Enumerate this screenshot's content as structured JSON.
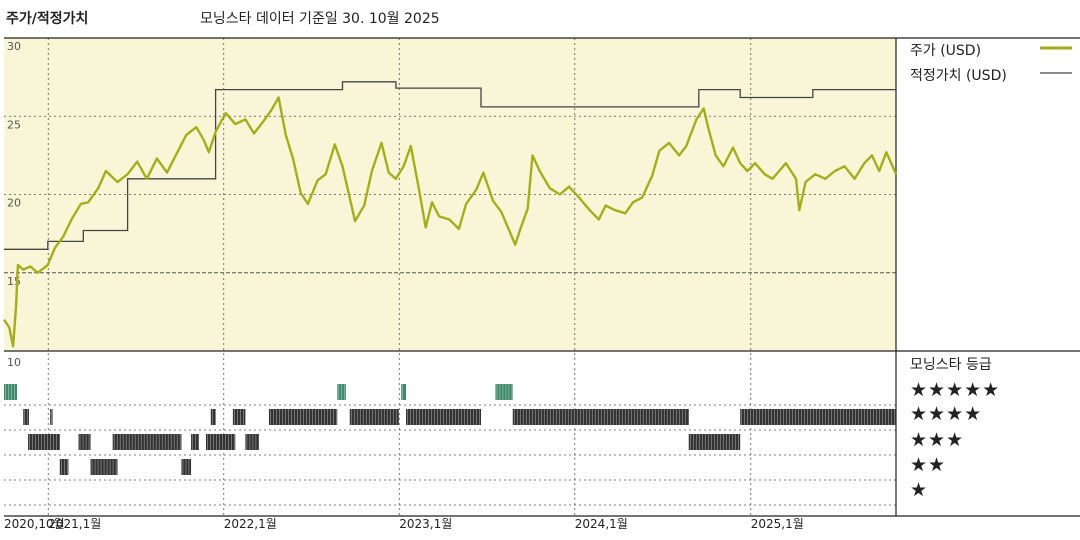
{
  "header": {
    "left_title": "주가/적정가치",
    "caption": "모닝스타 데이터 기준일 30. 10월 2025"
  },
  "legend": {
    "price_label": "주가 (USD)",
    "fair_label": "적정가치 (USD)",
    "rating_title": "모닝스타 등급",
    "stars": [
      "★★★★★",
      "★★★★",
      "★★★",
      "★★",
      "★"
    ]
  },
  "colors": {
    "price_line": "#a6ad1c",
    "fair_line": "#444444",
    "plot_bg": "#f8f6d6",
    "five_star": "#3f8a6a",
    "rating_bar": "#333333"
  },
  "chart_data": {
    "type": "line",
    "title": "주가/적정가치",
    "xlabel": "",
    "ylabel": "",
    "ylim": [
      10,
      30
    ],
    "yticks": [
      10,
      15,
      20,
      25,
      30
    ],
    "xlim": [
      "2020-10-01",
      "2025-10-30"
    ],
    "xticks": [
      {
        "date": "2020-10-01",
        "label": "2020,10월"
      },
      {
        "date": "2021-01-01",
        "label": "2021,1월"
      },
      {
        "date": "2022-01-01",
        "label": "2022,1월"
      },
      {
        "date": "2023-01-01",
        "label": "2023,1월"
      },
      {
        "date": "2024-01-01",
        "label": "2024,1월"
      },
      {
        "date": "2025-01-01",
        "label": "2025,1월"
      }
    ],
    "grid": true,
    "legend_position": "right",
    "series": [
      {
        "name": "주가 (USD)",
        "points": [
          [
            "2020-10-01",
            12.0
          ],
          [
            "2020-10-12",
            11.5
          ],
          [
            "2020-10-20",
            10.3
          ],
          [
            "2020-10-26",
            12.8
          ],
          [
            "2020-10-30",
            15.5
          ],
          [
            "2020-11-10",
            15.2
          ],
          [
            "2020-11-25",
            15.4
          ],
          [
            "2020-12-10",
            15.0
          ],
          [
            "2020-12-31",
            15.5
          ],
          [
            "2021-01-15",
            16.6
          ],
          [
            "2021-02-01",
            17.3
          ],
          [
            "2021-02-20",
            18.5
          ],
          [
            "2021-03-10",
            19.4
          ],
          [
            "2021-03-25",
            19.5
          ],
          [
            "2021-04-15",
            20.4
          ],
          [
            "2021-05-01",
            21.5
          ],
          [
            "2021-05-25",
            20.8
          ],
          [
            "2021-06-15",
            21.3
          ],
          [
            "2021-07-05",
            22.1
          ],
          [
            "2021-07-25",
            21.0
          ],
          [
            "2021-08-15",
            22.3
          ],
          [
            "2021-09-05",
            21.4
          ],
          [
            "2021-09-25",
            22.6
          ],
          [
            "2021-10-15",
            23.8
          ],
          [
            "2021-11-05",
            24.3
          ],
          [
            "2021-11-20",
            23.5
          ],
          [
            "2021-12-01",
            22.7
          ],
          [
            "2021-12-15",
            24.0
          ],
          [
            "2022-01-05",
            25.2
          ],
          [
            "2022-01-25",
            24.5
          ],
          [
            "2022-02-15",
            24.8
          ],
          [
            "2022-03-05",
            23.9
          ],
          [
            "2022-03-25",
            24.7
          ],
          [
            "2022-04-10",
            25.4
          ],
          [
            "2022-04-25",
            26.2
          ],
          [
            "2022-05-10",
            23.8
          ],
          [
            "2022-05-25",
            22.3
          ],
          [
            "2022-06-10",
            20.1
          ],
          [
            "2022-06-25",
            19.4
          ],
          [
            "2022-07-15",
            20.9
          ],
          [
            "2022-08-01",
            21.3
          ],
          [
            "2022-08-20",
            23.2
          ],
          [
            "2022-09-05",
            21.8
          ],
          [
            "2022-09-20",
            19.8
          ],
          [
            "2022-10-01",
            18.3
          ],
          [
            "2022-10-20",
            19.3
          ],
          [
            "2022-11-05",
            21.5
          ],
          [
            "2022-11-25",
            23.3
          ],
          [
            "2022-12-10",
            21.4
          ],
          [
            "2022-12-25",
            21.0
          ],
          [
            "2023-01-10",
            21.8
          ],
          [
            "2023-01-25",
            23.1
          ],
          [
            "2023-02-10",
            20.5
          ],
          [
            "2023-02-25",
            17.9
          ],
          [
            "2023-03-10",
            19.5
          ],
          [
            "2023-03-25",
            18.6
          ],
          [
            "2023-04-15",
            18.4
          ],
          [
            "2023-05-05",
            17.8
          ],
          [
            "2023-05-20",
            19.4
          ],
          [
            "2023-06-10",
            20.3
          ],
          [
            "2023-06-25",
            21.4
          ],
          [
            "2023-07-15",
            19.6
          ],
          [
            "2023-08-01",
            18.9
          ],
          [
            "2023-08-15",
            17.9
          ],
          [
            "2023-08-30",
            16.8
          ],
          [
            "2023-09-10",
            17.8
          ],
          [
            "2023-09-25",
            19.1
          ],
          [
            "2023-10-05",
            22.5
          ],
          [
            "2023-10-20",
            21.5
          ],
          [
            "2023-11-10",
            20.4
          ],
          [
            "2023-12-01",
            20.0
          ],
          [
            "2023-12-20",
            20.5
          ],
          [
            "2024-01-10",
            19.8
          ],
          [
            "2024-02-01",
            19.0
          ],
          [
            "2024-02-20",
            18.4
          ],
          [
            "2024-03-05",
            19.3
          ],
          [
            "2024-03-25",
            19.0
          ],
          [
            "2024-04-15",
            18.8
          ],
          [
            "2024-05-01",
            19.5
          ],
          [
            "2024-05-20",
            19.8
          ],
          [
            "2024-06-10",
            21.2
          ],
          [
            "2024-06-25",
            22.8
          ],
          [
            "2024-07-15",
            23.3
          ],
          [
            "2024-08-05",
            22.5
          ],
          [
            "2024-08-20",
            23.1
          ],
          [
            "2024-09-10",
            24.8
          ],
          [
            "2024-09-25",
            25.5
          ],
          [
            "2024-10-05",
            24.2
          ],
          [
            "2024-10-20",
            22.5
          ],
          [
            "2024-11-05",
            21.8
          ],
          [
            "2024-11-25",
            23.0
          ],
          [
            "2024-12-10",
            22.0
          ],
          [
            "2024-12-25",
            21.5
          ],
          [
            "2025-01-10",
            22.0
          ],
          [
            "2025-01-30",
            21.3
          ],
          [
            "2025-02-15",
            21.0
          ],
          [
            "2025-03-01",
            21.5
          ],
          [
            "2025-03-15",
            22.0
          ],
          [
            "2025-04-05",
            21.0
          ],
          [
            "2025-04-12",
            19.0
          ],
          [
            "2025-04-25",
            20.8
          ],
          [
            "2025-05-15",
            21.3
          ],
          [
            "2025-06-05",
            21.0
          ],
          [
            "2025-06-25",
            21.5
          ],
          [
            "2025-07-15",
            21.8
          ],
          [
            "2025-08-05",
            21.0
          ],
          [
            "2025-08-25",
            22.0
          ],
          [
            "2025-09-10",
            22.5
          ],
          [
            "2025-09-25",
            21.5
          ],
          [
            "2025-10-10",
            22.7
          ],
          [
            "2025-10-30",
            21.3
          ]
        ]
      },
      {
        "name": "적정가치 (USD)",
        "points": [
          [
            "2020-10-01",
            16.5
          ],
          [
            "2020-12-31",
            16.5
          ],
          [
            "2020-12-31",
            17.0
          ],
          [
            "2021-03-15",
            17.0
          ],
          [
            "2021-03-15",
            17.7
          ],
          [
            "2021-06-15",
            17.7
          ],
          [
            "2021-06-15",
            21.0
          ],
          [
            "2021-12-15",
            21.0
          ],
          [
            "2021-12-15",
            26.7
          ],
          [
            "2022-09-05",
            26.7
          ],
          [
            "2022-09-05",
            27.2
          ],
          [
            "2022-12-25",
            27.2
          ],
          [
            "2022-12-25",
            26.8
          ],
          [
            "2023-06-20",
            26.8
          ],
          [
            "2023-06-20",
            25.6
          ],
          [
            "2024-09-15",
            25.6
          ],
          [
            "2024-09-15",
            26.7
          ],
          [
            "2024-12-10",
            26.7
          ],
          [
            "2024-12-10",
            26.2
          ],
          [
            "2025-05-10",
            26.2
          ],
          [
            "2025-05-10",
            26.7
          ],
          [
            "2025-10-30",
            26.7
          ]
        ]
      }
    ],
    "rating_rows": [
      {
        "stars": 5,
        "segments": [
          [
            "2020-10-01",
            "2020-10-28"
          ],
          [
            "2022-08-25",
            "2022-09-12"
          ],
          [
            "2023-01-05",
            "2023-01-15"
          ],
          [
            "2023-07-20",
            "2023-08-25"
          ]
        ]
      },
      {
        "stars": 4,
        "segments": [
          [
            "2020-11-10",
            "2020-11-22"
          ],
          [
            "2021-01-05",
            "2021-01-10"
          ],
          [
            "2021-12-05",
            "2021-12-15"
          ],
          [
            "2022-01-20",
            "2022-02-15"
          ],
          [
            "2022-04-05",
            "2022-08-25"
          ],
          [
            "2022-09-20",
            "2022-12-31"
          ],
          [
            "2023-01-15",
            "2023-06-20"
          ],
          [
            "2023-08-25",
            "2024-08-25"
          ],
          [
            "2024-12-10",
            "2025-10-30"
          ]
        ]
      },
      {
        "stars": 3,
        "segments": [
          [
            "2020-11-20",
            "2021-01-25"
          ],
          [
            "2021-03-05",
            "2021-03-30"
          ],
          [
            "2021-05-15",
            "2021-10-05"
          ],
          [
            "2021-10-25",
            "2021-11-10"
          ],
          [
            "2021-11-25",
            "2022-01-25"
          ],
          [
            "2022-02-15",
            "2022-03-15"
          ],
          [
            "2024-08-25",
            "2024-12-10"
          ]
        ]
      },
      {
        "stars": 2,
        "segments": [
          [
            "2021-01-25",
            "2021-02-12"
          ],
          [
            "2021-03-30",
            "2021-05-25"
          ],
          [
            "2021-10-05",
            "2021-10-25"
          ]
        ]
      },
      {
        "stars": 1,
        "segments": []
      }
    ]
  }
}
